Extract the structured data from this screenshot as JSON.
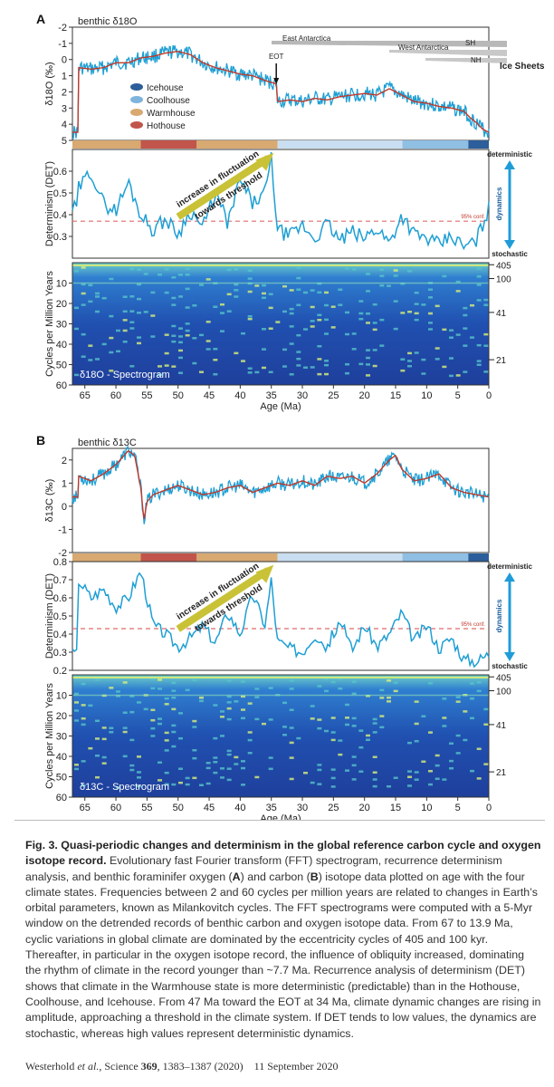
{
  "chart_data": [
    {
      "type": "line",
      "panel": "A",
      "title": "benthic δ18O",
      "ylabel": "δ18O (‰)",
      "ylim": [
        5,
        -2
      ],
      "y_inverted": true,
      "yticks": [
        -2,
        -1,
        0,
        1,
        2,
        3,
        4,
        5
      ],
      "x": [
        66,
        64,
        62,
        60,
        58,
        56,
        54,
        52,
        50,
        48,
        46,
        44,
        42,
        40,
        38,
        36,
        34.2,
        34,
        32,
        30,
        28,
        26,
        24,
        22,
        20,
        18,
        16,
        14,
        12,
        10,
        8,
        6,
        4,
        3,
        2,
        1,
        0
      ],
      "series": [
        {
          "values": [
            0.5,
            0.6,
            0.5,
            0.2,
            0.2,
            -0.1,
            -0.2,
            -0.4,
            -0.5,
            -0.3,
            0.2,
            0.5,
            0.7,
            0.9,
            1.0,
            1.3,
            1.5,
            2.6,
            2.5,
            2.6,
            2.4,
            2.5,
            2.3,
            2.2,
            2.1,
            2.2,
            1.8,
            2.2,
            2.6,
            2.7,
            2.9,
            3.0,
            3.2,
            3.6,
            3.9,
            4.3,
            4.5
          ]
        }
      ],
      "legend": [
        "Icehouse",
        "Coolhouse",
        "Warmhouse",
        "Hothouse"
      ],
      "legend_colors": [
        "#2b5e9a",
        "#7fb4dd",
        "#d8a970",
        "#c2554b"
      ],
      "annotations": [
        "EOT",
        "East Antarctica",
        "West Antarctica",
        "SH",
        "NH",
        "Ice Sheets"
      ]
    },
    {
      "type": "line",
      "panel": "A",
      "ylabel": "Determinism (DET)",
      "ylim": [
        0.2,
        0.7
      ],
      "yticks": [
        0.3,
        0.4,
        0.5,
        0.6
      ],
      "x": [
        66,
        64,
        62,
        60,
        58,
        56,
        54,
        52,
        50,
        48,
        46,
        44,
        42,
        40,
        38,
        36,
        35,
        34,
        32,
        30,
        28,
        26,
        24,
        22,
        20,
        18,
        16,
        14,
        12,
        10,
        8,
        6,
        4,
        2,
        0
      ],
      "series": [
        {
          "values": [
            0.52,
            0.6,
            0.45,
            0.42,
            0.55,
            0.4,
            0.33,
            0.38,
            0.31,
            0.42,
            0.34,
            0.5,
            0.36,
            0.56,
            0.45,
            0.5,
            0.66,
            0.33,
            0.3,
            0.35,
            0.29,
            0.36,
            0.28,
            0.32,
            0.29,
            0.34,
            0.27,
            0.4,
            0.31,
            0.29,
            0.26,
            0.3,
            0.25,
            0.28,
            0.43
          ]
        }
      ],
      "threshold": 0.37,
      "threshold_label": "95% conf.",
      "arrow_label_1": "increase in fluctuation",
      "arrow_label_2": "towards threshold",
      "right_labels": [
        "deterministic",
        "dynamics",
        "stochastic"
      ]
    },
    {
      "type": "heatmap",
      "panel": "A",
      "ylabel": "Cycles per Million Years",
      "xlabel": "Age (Ma)",
      "ylim": [
        60,
        0
      ],
      "yticks": [
        10,
        20,
        30,
        40,
        50,
        60
      ],
      "xlim": [
        67,
        0
      ],
      "xticks": [
        65,
        60,
        55,
        50,
        45,
        40,
        35,
        30,
        25,
        20,
        15,
        10,
        5,
        0
      ],
      "label": "δ18O - Spectrogram",
      "right_labels": [
        "405",
        "100",
        "41",
        "21"
      ]
    },
    {
      "type": "line",
      "panel": "B",
      "title": "benthic δ13C",
      "ylabel": "δ13C (‰)",
      "ylim": [
        -2,
        2.5
      ],
      "yticks": [
        -2,
        -1,
        0,
        1,
        2
      ],
      "x": [
        66,
        64,
        62,
        60,
        58,
        57,
        56,
        55.5,
        55,
        54,
        52,
        50,
        48,
        46,
        44,
        42,
        40,
        38,
        36,
        34,
        32,
        30,
        28,
        26,
        24,
        22,
        20,
        18,
        16,
        15,
        14,
        12,
        10,
        8,
        6,
        4,
        2,
        0
      ],
      "series": [
        {
          "values": [
            1.3,
            1.1,
            1.4,
            1.8,
            2.4,
            2.2,
            0.8,
            -0.6,
            0.2,
            0.5,
            0.7,
            0.9,
            0.7,
            0.5,
            0.6,
            0.8,
            0.9,
            0.6,
            0.8,
            1.0,
            0.9,
            1.1,
            0.9,
            1.3,
            1.2,
            1.3,
            1.0,
            1.4,
            2.0,
            2.2,
            1.6,
            1.1,
            1.2,
            1.4,
            0.8,
            0.6,
            0.5,
            0.4
          ]
        }
      ],
      "legend": []
    },
    {
      "type": "line",
      "panel": "B",
      "ylabel": "Determinism (DET)",
      "ylim": [
        0.2,
        0.8
      ],
      "yticks": [
        0.2,
        0.3,
        0.4,
        0.5,
        0.6,
        0.7,
        0.8
      ],
      "x": [
        66,
        64,
        62,
        60,
        58,
        56,
        54,
        52,
        50,
        48,
        46,
        44,
        42,
        40,
        38,
        36,
        35,
        34,
        32,
        30,
        28,
        26,
        24,
        22,
        20,
        18,
        16,
        14,
        12,
        10,
        8,
        6,
        4,
        2,
        0
      ],
      "series": [
        {
          "values": [
            0.7,
            0.6,
            0.65,
            0.55,
            0.6,
            0.75,
            0.45,
            0.4,
            0.33,
            0.38,
            0.45,
            0.35,
            0.52,
            0.4,
            0.62,
            0.45,
            0.7,
            0.36,
            0.32,
            0.3,
            0.4,
            0.33,
            0.48,
            0.31,
            0.45,
            0.33,
            0.4,
            0.52,
            0.36,
            0.45,
            0.32,
            0.38,
            0.26,
            0.25,
            0.29
          ]
        }
      ],
      "threshold": 0.43,
      "threshold_label": "95% conf.",
      "arrow_label_1": "increase in fluctuation",
      "arrow_label_2": "towards threshold",
      "right_labels": [
        "deterministic",
        "dynamics",
        "stochastic"
      ]
    },
    {
      "type": "heatmap",
      "panel": "B",
      "ylabel": "Cycles per Million Years",
      "xlabel": "Age (Ma)",
      "ylim": [
        60,
        0
      ],
      "yticks": [
        10,
        20,
        30,
        40,
        50,
        60
      ],
      "xlim": [
        67,
        0
      ],
      "xticks": [
        65,
        60,
        55,
        50,
        45,
        40,
        35,
        30,
        25,
        20,
        15,
        10,
        5,
        0
      ],
      "label": "δ13C - Spectrogram",
      "right_labels": [
        "405",
        "100",
        "41",
        "21"
      ]
    }
  ],
  "climate_states": [
    {
      "name": "Warmhouse",
      "from": 67,
      "to": 56,
      "color": "#d8a970"
    },
    {
      "name": "Hothouse",
      "from": 56,
      "to": 47,
      "color": "#c2554b"
    },
    {
      "name": "Warmhouse",
      "from": 47,
      "to": 34,
      "color": "#d8a970"
    },
    {
      "name": "Coolhouse",
      "from": 34,
      "to": 13.9,
      "color": "#c9def0"
    },
    {
      "name": "Coolhouse",
      "from": 13.9,
      "to": 3.3,
      "color": "#8fbfe3"
    },
    {
      "name": "Icehouse",
      "from": 3.3,
      "to": 0,
      "color": "#2b5e9a"
    }
  ],
  "colors": {
    "series": "#1e9fd4",
    "smooth": "#c0392b",
    "threshold": "#e06b6b",
    "arrow": "#c9c236",
    "dynamics": "#1f9cd8"
  },
  "caption": {
    "title": "Fig. 3. Quasi-periodic changes and determinism in the global reference carbon cycle and oxygen isotope record.",
    "body_1": " Evolutionary fast Fourier transform (FFT) spectrogram, recurrence determinism analysis, and benthic foraminifer oxygen (",
    "bold_a": "A",
    "body_2": ") and carbon (",
    "bold_b": "B",
    "body_3": ") isotope data plotted on age with the four climate states. Frequencies between 2 and 60 cycles per million years are related to changes in Earth’s orbital parameters, known as Milankovitch cycles. The FFT spectrograms were computed with a 5-Myr window on the detrended records of benthic carbon and oxygen isotope data. From 67 to 13.9 Ma, cyclic variations in global climate are dominated by the eccentricity cycles of 405 and 100 kyr. Thereafter, in particular in the oxygen isotope record, the influence of obliquity increased, dominating the rhythm of climate in the record younger than ~7.7 Ma. Recurrence analysis of determinism (DET) shows that climate in the Warmhouse state is more deterministic (predictable) than in the Hothouse, Coolhouse, and Icehouse. From 47 Ma toward the EOT at 34 Ma, climate dynamic changes are rising in amplitude, approaching a threshold in the climate system. If DET tends to low values, the dynamics are stochastic, whereas high values represent deterministic dynamics."
  },
  "reference": {
    "authors": "Westerhold ",
    "etal": "et al.",
    "journal": ", Science ",
    "volume": "369",
    "pages": ", 1383–1387 (2020)",
    "date": "11 September 2020"
  }
}
